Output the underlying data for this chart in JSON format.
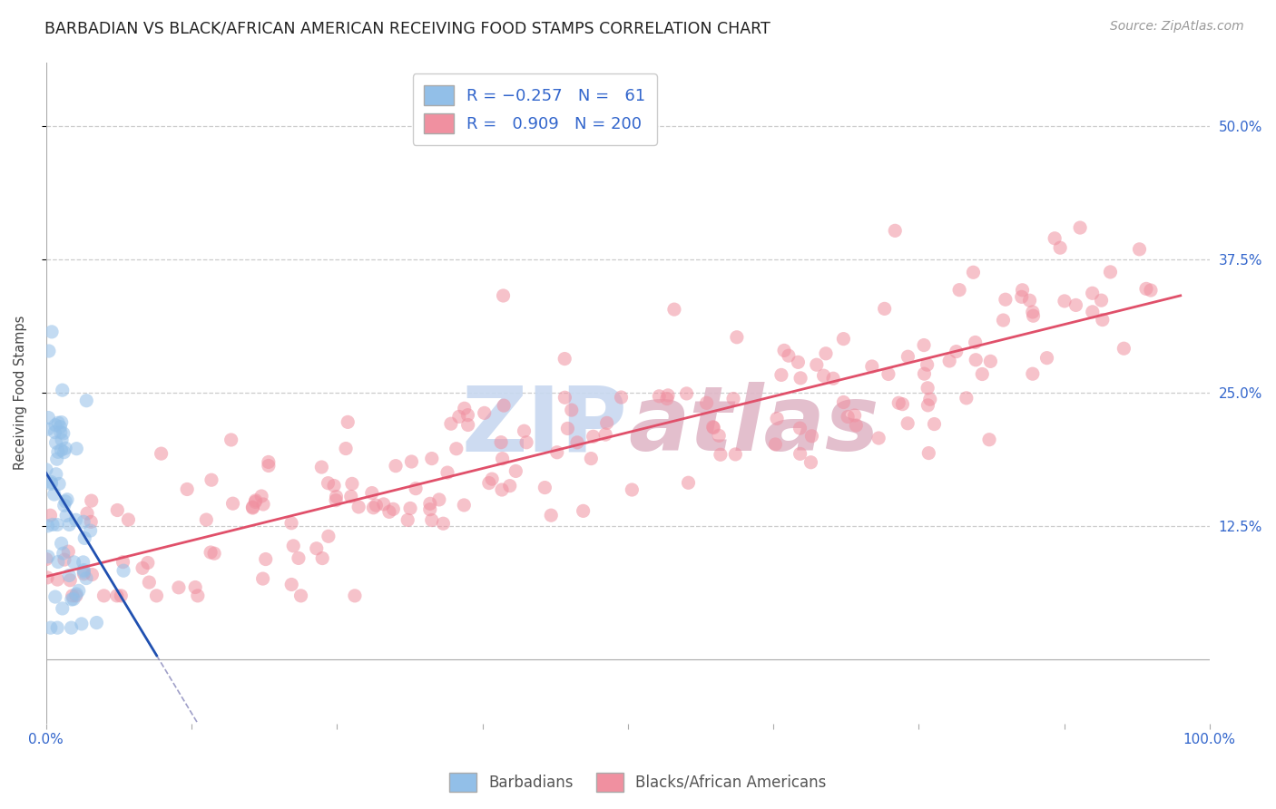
{
  "title": "BARBADIAN VS BLACK/AFRICAN AMERICAN RECEIVING FOOD STAMPS CORRELATION CHART",
  "source": "Source: ZipAtlas.com",
  "ylabel": "Receiving Food Stamps",
  "blue_color": "#92bfe8",
  "pink_color": "#f090a0",
  "blue_line_color": "#2050b0",
  "pink_line_color": "#e0506a",
  "dashed_line_color": "#8888bb",
  "watermark_color": "#c8d8f0",
  "xlim": [
    0.0,
    1.0
  ],
  "ylim": [
    -0.06,
    0.56
  ],
  "background_color": "#ffffff",
  "title_fontsize": 12.5,
  "source_fontsize": 10,
  "axis_label_fontsize": 10.5,
  "tick_label_fontsize": 11,
  "legend_fontsize": 13,
  "R_blue": -0.257,
  "N_blue": 61,
  "R_pink": 0.909,
  "N_pink": 200,
  "blue_slope": -1.8,
  "blue_intercept": 0.175,
  "pink_slope": 0.27,
  "pink_intercept": 0.078,
  "grid_color": "#cccccc",
  "axis_color": "#aaaaaa"
}
